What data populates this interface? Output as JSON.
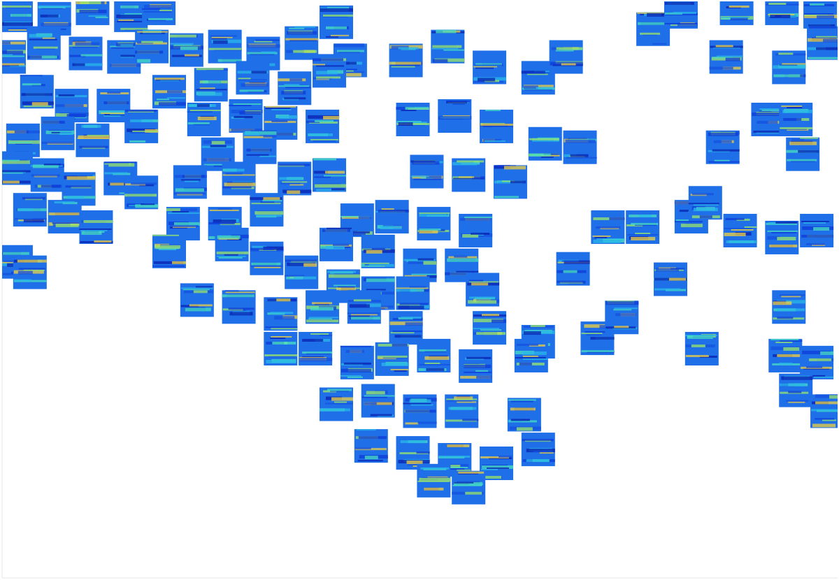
{
  "chart_data": {
    "type": "scatter",
    "color": "#1f6fe8",
    "marker": "square",
    "tick_labels": false,
    "xlim": [
      0,
      1200
    ],
    "ylim": [
      0,
      830
    ],
    "x": [
      20,
      75,
      130,
      185,
      225,
      10,
      60,
      120,
      175,
      215,
      50,
      100,
      160,
      200,
      30,
      80,
      130,
      20,
      65,
      110,
      170,
      200,
      40,
      90,
      135,
      20,
      40,
      265,
      320,
      375,
      430,
      480,
      500,
      240,
      300,
      360,
      420,
      470,
      290,
      350,
      400,
      460,
      310,
      370,
      420,
      470,
      270,
      340,
      380,
      260,
      320,
      240,
      330,
      380,
      580,
      640,
      700,
      770,
      810,
      590,
      650,
      710,
      780,
      830,
      610,
      670,
      730,
      510,
      560,
      620,
      680,
      480,
      540,
      600,
      660,
      430,
      490,
      540,
      590,
      690,
      280,
      340,
      400,
      460,
      520,
      580,
      700,
      770,
      855,
      890,
      400,
      450,
      510,
      560,
      620,
      680,
      760,
      480,
      540,
      600,
      660,
      750,
      530,
      590,
      650,
      710,
      770,
      620,
      670,
      820,
      960,
      1005,
      935,
      975,
      1055,
      1120,
      1175,
      1040,
      1130,
      1180,
      1100,
      1140,
      1150,
      1035,
      870,
      920,
      990,
      1010,
      1060,
      1120,
      1170,
      1130,
      1125,
      1170,
      1140,
      1185
    ],
    "y": [
      810,
      805,
      820,
      810,
      820,
      750,
      770,
      755,
      750,
      765,
      700,
      680,
      680,
      650,
      630,
      640,
      630,
      590,
      580,
      560,
      575,
      555,
      530,
      520,
      505,
      455,
      440,
      760,
      765,
      755,
      770,
      800,
      745,
      700,
      710,
      720,
      705,
      730,
      660,
      665,
      655,
      650,
      610,
      620,
      575,
      580,
      570,
      575,
      530,
      510,
      510,
      470,
      480,
      460,
      745,
      765,
      735,
      720,
      750,
      660,
      665,
      650,
      625,
      620,
      585,
      580,
      570,
      515,
      520,
      510,
      500,
      480,
      470,
      450,
      450,
      440,
      420,
      410,
      410,
      415,
      400,
      390,
      380,
      390,
      390,
      360,
      360,
      340,
      345,
      375,
      330,
      330,
      310,
      315,
      320,
      305,
      320,
      250,
      255,
      240,
      240,
      235,
      190,
      180,
      170,
      165,
      185,
      140,
      130,
      445,
      430,
      330,
      790,
      815,
      820,
      820,
      815,
      750,
      735,
      770,
      660,
      660,
      610,
      620,
      505,
      505,
      520,
      540,
      500,
      490,
      500,
      390,
      320,
      310,
      270,
      240
    ]
  }
}
